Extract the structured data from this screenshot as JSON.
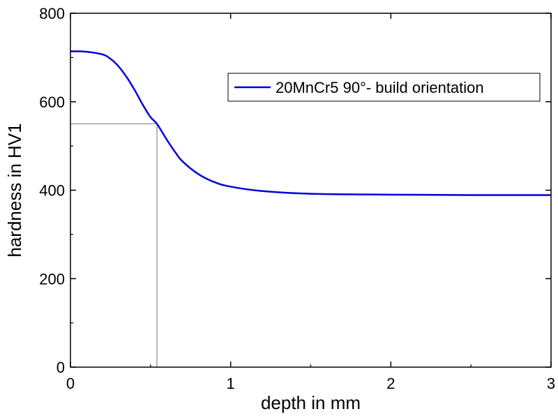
{
  "chart_data": {
    "type": "line",
    "xlabel": "depth in mm",
    "ylabel": "hardness in HV1",
    "xlim": [
      0,
      3
    ],
    "ylim": [
      0,
      800
    ],
    "x_ticks": [
      0,
      1,
      2,
      3
    ],
    "x_tick_labels": [
      "0",
      "1",
      "2",
      "3"
    ],
    "y_ticks": [
      0,
      200,
      400,
      600,
      800
    ],
    "y_tick_labels": [
      "0",
      "200",
      "400",
      "600",
      "800"
    ],
    "grid": false,
    "legend_position": "top-right",
    "series": [
      {
        "name": "20MnCr5 90°- build orientation",
        "color": "#0000dd",
        "x": [
          0,
          0.1,
          0.2,
          0.25,
          0.3,
          0.35,
          0.4,
          0.45,
          0.5,
          0.54,
          0.6,
          0.65,
          0.7,
          0.8,
          0.9,
          1.0,
          1.2,
          1.5,
          2.0,
          2.5,
          3.0
        ],
        "y": [
          714,
          713,
          707,
          697,
          680,
          656,
          627,
          594,
          565,
          550,
          515,
          488,
          465,
          436,
          418,
          408,
          398,
          392,
          390,
          389,
          389
        ]
      }
    ],
    "annotations": [
      {
        "type": "reference-lines",
        "x": 0.54,
        "y": 550,
        "color": "#888888"
      }
    ]
  }
}
